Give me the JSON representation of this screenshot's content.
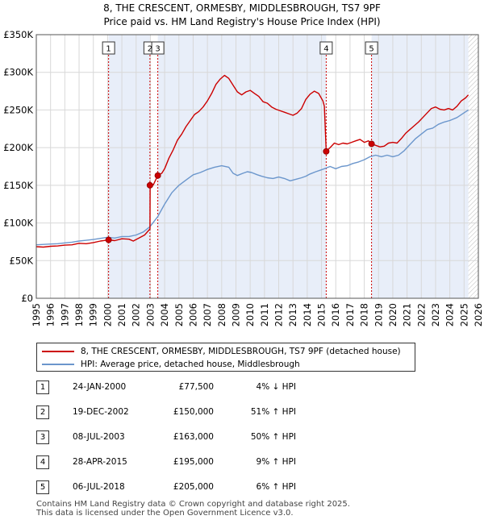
{
  "chart_data": {
    "type": "line",
    "title_line1": "8, THE CRESCENT, ORMESBY, MIDDLESBROUGH, TS7 9PF",
    "title_line2": "Price paid vs. HM Land Registry's House Price Index (HPI)",
    "x_range": [
      1995,
      2026
    ],
    "ylim": [
      0,
      350000
    ],
    "y_ticks": [
      {
        "value": 0,
        "label": "£0"
      },
      {
        "value": 50000,
        "label": "£50K"
      },
      {
        "value": 100000,
        "label": "£100K"
      },
      {
        "value": 150000,
        "label": "£150K"
      },
      {
        "value": 200000,
        "label": "£200K"
      },
      {
        "value": 250000,
        "label": "£250K"
      },
      {
        "value": 300000,
        "label": "£300K"
      },
      {
        "value": 350000,
        "label": "£350K"
      }
    ],
    "x_ticks": [
      "1995",
      "1996",
      "1997",
      "1998",
      "1999",
      "2000",
      "2001",
      "2002",
      "2003",
      "2004",
      "2005",
      "2006",
      "2007",
      "2008",
      "2009",
      "2010",
      "2011",
      "2012",
      "2013",
      "2014",
      "2015",
      "2016",
      "2017",
      "2018",
      "2019",
      "2020",
      "2021",
      "2022",
      "2023",
      "2024",
      "2025",
      "2026"
    ],
    "shaded_ranges": [
      [
        2000.07,
        2002.97
      ],
      [
        2003.52,
        2015.33
      ],
      [
        2018.51,
        2025.3
      ]
    ],
    "future_hatch_from": 2025.3,
    "series": [
      {
        "name": "8, THE CRESCENT, ORMESBY, MIDDLESBROUGH, TS7 9PF (detached house)",
        "color": "#cc0000",
        "points": [
          [
            1995.0,
            68500
          ],
          [
            1995.5,
            68000
          ],
          [
            1996.0,
            69000
          ],
          [
            1996.5,
            69500
          ],
          [
            1997.0,
            70500
          ],
          [
            1997.5,
            71000
          ],
          [
            1998.0,
            73000
          ],
          [
            1998.5,
            72500
          ],
          [
            1999.0,
            74000
          ],
          [
            1999.5,
            76000
          ],
          [
            2000.07,
            77500
          ],
          [
            2000.5,
            76500
          ],
          [
            2001.0,
            79000
          ],
          [
            2001.5,
            78500
          ],
          [
            2001.8,
            76000
          ],
          [
            2002.2,
            80000
          ],
          [
            2002.6,
            84000
          ],
          [
            2002.97,
            92000
          ],
          [
            2002.98,
            150000
          ],
          [
            2003.2,
            150500
          ],
          [
            2003.52,
            163000
          ],
          [
            2003.8,
            166000
          ],
          [
            2004.0,
            172000
          ],
          [
            2004.3,
            186000
          ],
          [
            2004.6,
            197000
          ],
          [
            2004.9,
            210000
          ],
          [
            2005.2,
            218000
          ],
          [
            2005.5,
            228000
          ],
          [
            2005.8,
            236000
          ],
          [
            2006.1,
            244000
          ],
          [
            2006.4,
            248000
          ],
          [
            2006.7,
            254000
          ],
          [
            2007.0,
            262000
          ],
          [
            2007.3,
            272000
          ],
          [
            2007.6,
            284000
          ],
          [
            2007.9,
            291000
          ],
          [
            2008.2,
            296000
          ],
          [
            2008.5,
            292000
          ],
          [
            2008.8,
            283000
          ],
          [
            2009.1,
            274000
          ],
          [
            2009.4,
            270000
          ],
          [
            2009.7,
            274000
          ],
          [
            2010.0,
            276000
          ],
          [
            2010.3,
            272000
          ],
          [
            2010.6,
            268000
          ],
          [
            2010.9,
            261000
          ],
          [
            2011.2,
            259000
          ],
          [
            2011.5,
            254000
          ],
          [
            2011.8,
            251000
          ],
          [
            2012.1,
            249000
          ],
          [
            2012.4,
            247000
          ],
          [
            2012.7,
            245000
          ],
          [
            2013.0,
            243000
          ],
          [
            2013.3,
            246000
          ],
          [
            2013.6,
            252000
          ],
          [
            2013.9,
            264000
          ],
          [
            2014.2,
            271000
          ],
          [
            2014.5,
            275000
          ],
          [
            2014.8,
            272000
          ],
          [
            2015.1,
            262000
          ],
          [
            2015.2,
            255000
          ],
          [
            2015.33,
            195000
          ],
          [
            2015.6,
            200000
          ],
          [
            2015.9,
            206000
          ],
          [
            2016.2,
            204000
          ],
          [
            2016.5,
            206000
          ],
          [
            2016.8,
            205000
          ],
          [
            2017.1,
            207000
          ],
          [
            2017.4,
            209000
          ],
          [
            2017.7,
            211000
          ],
          [
            2018.0,
            207000
          ],
          [
            2018.3,
            209000
          ],
          [
            2018.51,
            205000
          ],
          [
            2018.8,
            203000
          ],
          [
            2019.1,
            201000
          ],
          [
            2019.4,
            202000
          ],
          [
            2019.7,
            206000
          ],
          [
            2020.0,
            207000
          ],
          [
            2020.3,
            206000
          ],
          [
            2020.6,
            212000
          ],
          [
            2020.9,
            219000
          ],
          [
            2021.2,
            224000
          ],
          [
            2021.5,
            229000
          ],
          [
            2021.8,
            234000
          ],
          [
            2022.1,
            240000
          ],
          [
            2022.4,
            246000
          ],
          [
            2022.7,
            252000
          ],
          [
            2023.0,
            254000
          ],
          [
            2023.3,
            251000
          ],
          [
            2023.6,
            250000
          ],
          [
            2023.9,
            252000
          ],
          [
            2024.2,
            250000
          ],
          [
            2024.5,
            255000
          ],
          [
            2024.8,
            262000
          ],
          [
            2025.1,
            266000
          ],
          [
            2025.3,
            270000
          ]
        ]
      },
      {
        "name": "HPI: Average price, detached house, Middlesbrough",
        "color": "#6b96cc",
        "points": [
          [
            1995.0,
            71000
          ],
          [
            1995.5,
            71500
          ],
          [
            1996.0,
            72000
          ],
          [
            1996.5,
            72500
          ],
          [
            1997.0,
            73500
          ],
          [
            1997.5,
            74500
          ],
          [
            1998.0,
            76000
          ],
          [
            1998.5,
            77000
          ],
          [
            1999.0,
            78000
          ],
          [
            1999.5,
            79500
          ],
          [
            2000.0,
            81000
          ],
          [
            2000.5,
            80000
          ],
          [
            2001.0,
            82000
          ],
          [
            2001.5,
            82000
          ],
          [
            2002.0,
            84000
          ],
          [
            2002.5,
            88000
          ],
          [
            2002.97,
            95000
          ],
          [
            2003.5,
            108000
          ],
          [
            2004.0,
            125000
          ],
          [
            2004.5,
            140000
          ],
          [
            2005.0,
            150000
          ],
          [
            2005.5,
            157000
          ],
          [
            2006.0,
            164000
          ],
          [
            2006.5,
            167000
          ],
          [
            2007.0,
            171000
          ],
          [
            2007.5,
            174000
          ],
          [
            2008.0,
            176000
          ],
          [
            2008.5,
            174000
          ],
          [
            2008.8,
            166000
          ],
          [
            2009.1,
            163000
          ],
          [
            2009.5,
            166000
          ],
          [
            2009.8,
            168000
          ],
          [
            2010.1,
            167000
          ],
          [
            2010.5,
            164000
          ],
          [
            2010.8,
            162000
          ],
          [
            2011.2,
            160000
          ],
          [
            2011.6,
            159000
          ],
          [
            2012.0,
            161000
          ],
          [
            2012.4,
            159000
          ],
          [
            2012.8,
            156000
          ],
          [
            2013.2,
            158000
          ],
          [
            2013.6,
            160000
          ],
          [
            2013.9,
            162000
          ],
          [
            2014.2,
            165000
          ],
          [
            2014.6,
            168000
          ],
          [
            2014.9,
            170000
          ],
          [
            2015.2,
            172000
          ],
          [
            2015.6,
            175000
          ],
          [
            2016.0,
            172000
          ],
          [
            2016.4,
            175000
          ],
          [
            2016.8,
            176000
          ],
          [
            2017.2,
            179000
          ],
          [
            2017.6,
            181000
          ],
          [
            2018.0,
            184000
          ],
          [
            2018.4,
            188000
          ],
          [
            2018.8,
            190000
          ],
          [
            2019.2,
            188000
          ],
          [
            2019.6,
            190000
          ],
          [
            2020.0,
            188000
          ],
          [
            2020.4,
            190000
          ],
          [
            2020.8,
            196000
          ],
          [
            2021.2,
            204000
          ],
          [
            2021.6,
            212000
          ],
          [
            2022.0,
            218000
          ],
          [
            2022.4,
            224000
          ],
          [
            2022.8,
            226000
          ],
          [
            2023.2,
            231000
          ],
          [
            2023.6,
            234000
          ],
          [
            2024.0,
            236000
          ],
          [
            2024.5,
            240000
          ],
          [
            2024.9,
            245000
          ],
          [
            2025.3,
            250000
          ]
        ]
      }
    ],
    "markers": [
      {
        "id": "1",
        "year": 2000.07,
        "value": 77500
      },
      {
        "id": "2",
        "year": 2002.97,
        "value": 150000
      },
      {
        "id": "3",
        "year": 2003.52,
        "value": 163000
      },
      {
        "id": "4",
        "year": 2015.33,
        "value": 195000
      },
      {
        "id": "5",
        "year": 2018.51,
        "value": 205000
      }
    ],
    "legend_position": "bottom"
  },
  "legend": {
    "property": "8, THE CRESCENT, ORMESBY, MIDDLESBROUGH, TS7 9PF (detached house)",
    "hpi": "HPI: Average price, detached house, Middlesbrough"
  },
  "sales": [
    {
      "id": "1",
      "date": "24-JAN-2000",
      "price": "£77,500",
      "hpi": "4% ↓ HPI"
    },
    {
      "id": "2",
      "date": "19-DEC-2002",
      "price": "£150,000",
      "hpi": "51% ↑ HPI"
    },
    {
      "id": "3",
      "date": "08-JUL-2003",
      "price": "£163,000",
      "hpi": "50% ↑ HPI"
    },
    {
      "id": "4",
      "date": "28-APR-2015",
      "price": "£195,000",
      "hpi": "9% ↑ HPI"
    },
    {
      "id": "5",
      "date": "06-JUL-2018",
      "price": "£205,000",
      "hpi": "6% ↑ HPI"
    }
  ],
  "footer": {
    "line1": "Contains HM Land Registry data © Crown copyright and database right 2025.",
    "line2": "This data is licensed under the Open Government Licence v3.0."
  },
  "colors": {
    "property_line": "#cc0000",
    "hpi_line": "#6b96cc",
    "shade": "#e8eef9",
    "grid": "#d8d8d8"
  }
}
